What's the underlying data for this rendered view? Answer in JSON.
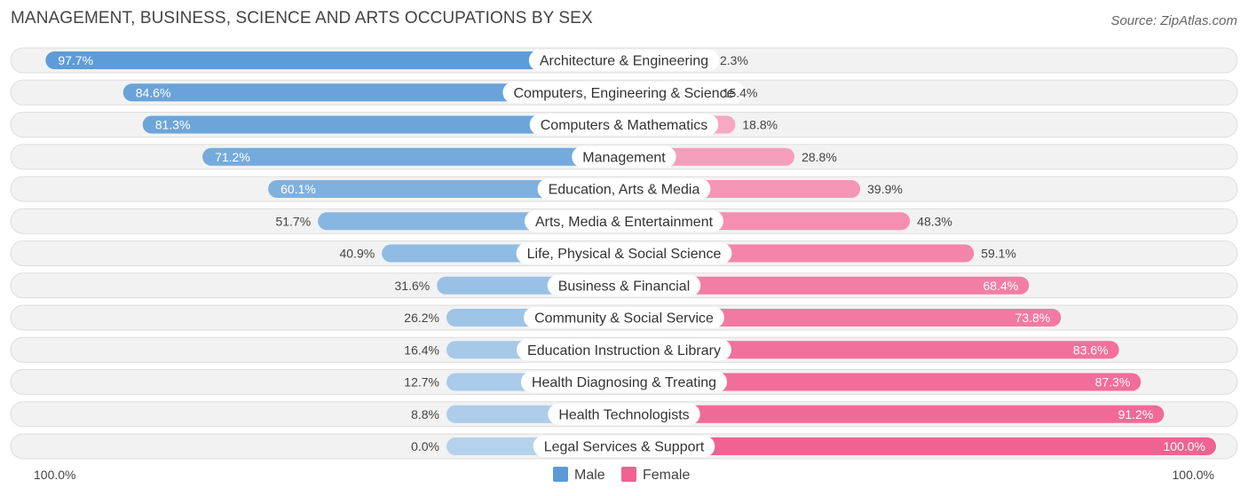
{
  "chart_data": {
    "type": "bar",
    "orientation": "horizontal-diverging",
    "title": "MANAGEMENT, BUSINESS, SCIENCE AND ARTS OCCUPATIONS BY SEX",
    "source": "Source: ZipAtlas.com",
    "categories": [
      "Architecture & Engineering",
      "Computers, Engineering & Science",
      "Computers & Mathematics",
      "Management",
      "Education, Arts & Media",
      "Arts, Media & Entertainment",
      "Life, Physical & Social Science",
      "Business & Financial",
      "Community & Social Service",
      "Education Instruction & Library",
      "Health Diagnosing & Treating",
      "Health Technologists",
      "Legal Services & Support"
    ],
    "series": [
      {
        "name": "Male",
        "color": "#5b9bd5",
        "values": [
          97.7,
          84.6,
          81.3,
          71.2,
          60.1,
          51.7,
          40.9,
          31.6,
          26.2,
          16.4,
          12.7,
          8.8,
          0.0
        ],
        "labels": [
          "97.7%",
          "84.6%",
          "81.3%",
          "71.2%",
          "60.1%",
          "51.7%",
          "40.9%",
          "31.6%",
          "26.2%",
          "16.4%",
          "12.7%",
          "8.8%",
          "0.0%"
        ]
      },
      {
        "name": "Female",
        "color": "#f06292",
        "values": [
          2.3,
          15.4,
          18.8,
          28.8,
          39.9,
          48.3,
          59.1,
          68.4,
          73.8,
          83.6,
          87.3,
          91.2,
          100.0
        ],
        "labels": [
          "2.3%",
          "15.4%",
          "18.8%",
          "28.8%",
          "39.9%",
          "48.3%",
          "59.1%",
          "68.4%",
          "73.8%",
          "83.6%",
          "87.3%",
          "91.2%",
          "100.0%"
        ]
      }
    ],
    "axis": {
      "min": 0,
      "max": 100,
      "left_label": "100.0%",
      "right_label": "100.0%"
    },
    "legend": {
      "position": "bottom-center",
      "entries": [
        "Male",
        "Female"
      ]
    }
  }
}
